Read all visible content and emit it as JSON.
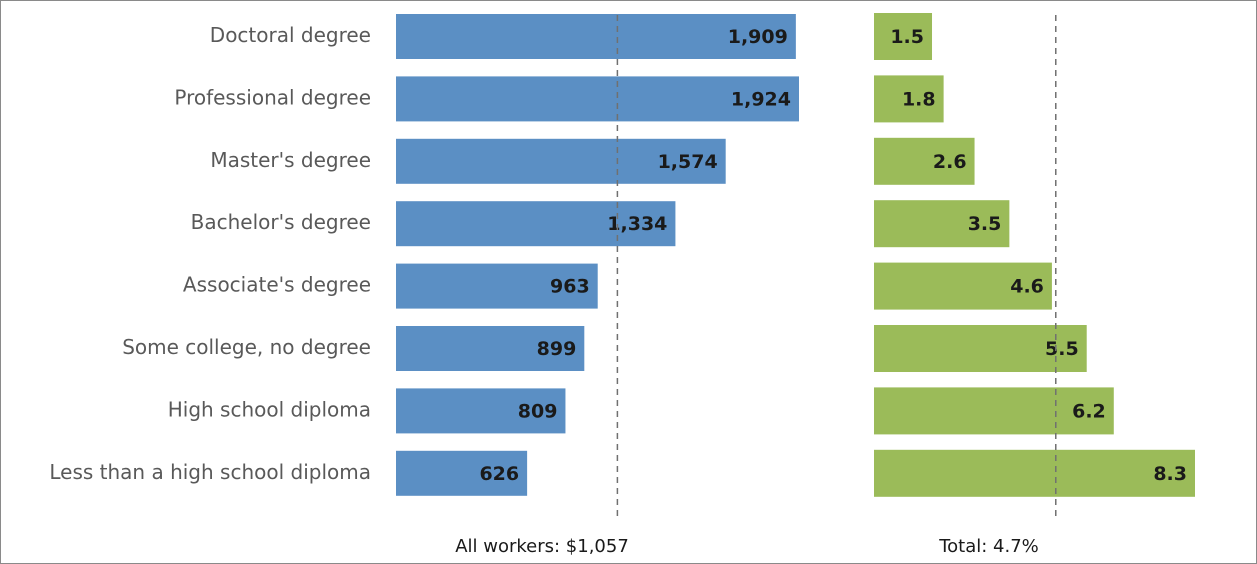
{
  "chart_data": [
    {
      "type": "bar",
      "orientation": "horizontal",
      "categories": [
        "Doctoral degree",
        "Professional degree",
        "Master's degree",
        "Bachelor's degree",
        "Associate's degree",
        "Some college, no degree",
        "High school diploma",
        "Less than a high school diploma"
      ],
      "values": [
        1909,
        1924,
        1574,
        1334,
        963,
        899,
        809,
        626
      ],
      "value_labels": [
        "1,909",
        "1,924",
        "1,574",
        "1,334",
        "963",
        "899",
        "809",
        "626"
      ],
      "reference_value": 1057,
      "reference_label": "All workers: $1,057",
      "xlim": [
        0,
        1924
      ],
      "color": "#5b8fc4"
    },
    {
      "type": "bar",
      "orientation": "horizontal",
      "categories": [
        "Doctoral degree",
        "Professional degree",
        "Master's degree",
        "Bachelor's degree",
        "Associate's degree",
        "Some college, no degree",
        "High school diploma",
        "Less than a high school diploma"
      ],
      "values": [
        1.5,
        1.8,
        2.6,
        3.5,
        4.6,
        5.5,
        6.2,
        8.3
      ],
      "value_labels": [
        "1.5",
        "1.8",
        "2.6",
        "3.5",
        "4.6",
        "5.5",
        "6.2",
        "8.3"
      ],
      "reference_value": 4.7,
      "reference_label": "Total: 4.7%",
      "xlim": [
        0,
        8.3
      ],
      "color": "#9bbb59"
    }
  ]
}
